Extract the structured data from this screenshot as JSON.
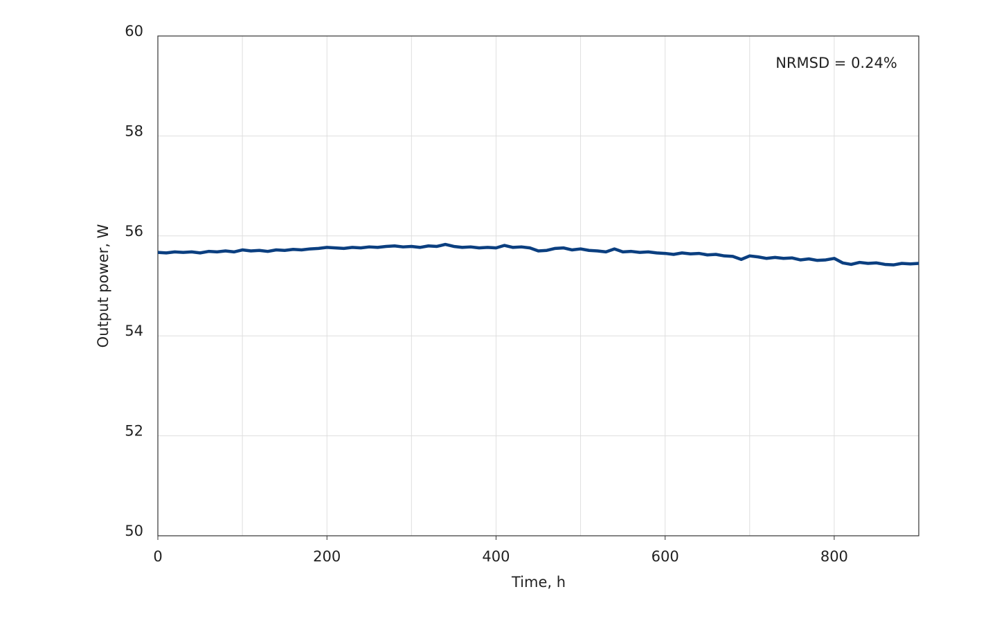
{
  "chart_data": {
    "type": "line",
    "annotation": "NRMSD = 0.24%",
    "xlabel": "Time, h",
    "ylabel": "Output power, W",
    "x": [
      0,
      10,
      20,
      30,
      40,
      50,
      60,
      70,
      80,
      90,
      100,
      110,
      120,
      130,
      140,
      150,
      160,
      170,
      180,
      190,
      200,
      210,
      220,
      230,
      240,
      250,
      260,
      270,
      280,
      290,
      300,
      310,
      320,
      330,
      340,
      350,
      360,
      370,
      380,
      390,
      400,
      410,
      420,
      430,
      440,
      450,
      460,
      470,
      480,
      490,
      500,
      510,
      520,
      530,
      540,
      550,
      560,
      570,
      580,
      590,
      600,
      610,
      620,
      630,
      640,
      650,
      660,
      670,
      680,
      690,
      700,
      710,
      720,
      730,
      740,
      750,
      760,
      770,
      780,
      790,
      800,
      810,
      820,
      830,
      840,
      850,
      860,
      870,
      880,
      890,
      900
    ],
    "series": [
      {
        "color": "#0b3f80",
        "values": [
          55.67,
          55.66,
          55.68,
          55.67,
          55.68,
          55.66,
          55.69,
          55.68,
          55.7,
          55.68,
          55.72,
          55.7,
          55.71,
          55.69,
          55.72,
          55.71,
          55.73,
          55.72,
          55.74,
          55.75,
          55.77,
          55.76,
          55.75,
          55.77,
          55.76,
          55.78,
          55.77,
          55.79,
          55.8,
          55.78,
          55.79,
          55.77,
          55.8,
          55.79,
          55.83,
          55.79,
          55.77,
          55.78,
          55.76,
          55.77,
          55.76,
          55.81,
          55.77,
          55.78,
          55.76,
          55.7,
          55.71,
          55.75,
          55.76,
          55.72,
          55.74,
          55.71,
          55.7,
          55.68,
          55.74,
          55.68,
          55.69,
          55.67,
          55.68,
          55.66,
          55.65,
          55.63,
          55.66,
          55.64,
          55.65,
          55.62,
          55.63,
          55.6,
          55.59,
          55.53,
          55.6,
          55.58,
          55.55,
          55.57,
          55.55,
          55.56,
          55.52,
          55.54,
          55.51,
          55.52,
          55.55,
          55.46,
          55.43,
          55.47,
          55.45,
          55.46,
          55.43,
          55.42,
          55.45,
          55.44,
          55.45
        ]
      }
    ],
    "xlim": [
      0,
      900
    ],
    "xticks": [
      0,
      200,
      400,
      600,
      800
    ],
    "xgrid": [
      100,
      200,
      300,
      400,
      500,
      600,
      700,
      800
    ],
    "ylim": [
      50,
      60
    ],
    "yticks": [
      50,
      52,
      54,
      56,
      58,
      60
    ],
    "grid": true
  }
}
